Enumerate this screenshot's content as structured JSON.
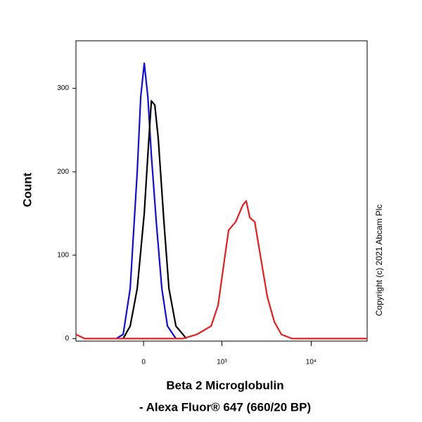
{
  "chart_data": {
    "type": "line",
    "y_label": "Count",
    "x_label": [
      "Beta 2 Microglobulin",
      "- Alexa Fluor® 647 (660/20 BP)"
    ],
    "annotation": "Copyright (c) 2021 Abcam Plc",
    "xscale": "biexponential",
    "xlim": [
      -750,
      41800
    ],
    "ylim": [
      -3,
      357
    ],
    "xticks": [
      0,
      {
        "value": 1000,
        "label": "10³"
      },
      {
        "value": 10000,
        "label": "10⁴"
      }
    ],
    "yticks": [
      0,
      100,
      200,
      300
    ],
    "series": [
      {
        "color": "#1010c8",
        "x": [
          -208,
          -150,
          -96,
          -45,
          -20,
          5,
          30,
          55,
          91,
          133,
          179,
          254
        ],
        "values": [
          0,
          5,
          60,
          200,
          290,
          330,
          290,
          220,
          140,
          60,
          15,
          0
        ]
      },
      {
        "color": "#000000",
        "x": [
          -150,
          -96,
          -45,
          5,
          30,
          55,
          80,
          106,
          150,
          191,
          254,
          366
        ],
        "values": [
          0,
          15,
          60,
          150,
          220,
          285,
          280,
          240,
          140,
          60,
          15,
          0
        ]
      },
      {
        "color": "#e02020",
        "x": [
          -750,
          -591,
          326,
          501,
          749,
          905,
          1089,
          1196,
          1438,
          1727,
          1889,
          2071,
          2351,
          2714,
          3253,
          3894,
          4664,
          6105,
          41800
        ],
        "values": [
          5,
          0,
          0,
          5,
          15,
          40,
          100,
          130,
          140,
          160,
          165,
          145,
          140,
          100,
          50,
          20,
          5,
          0,
          0
        ]
      }
    ]
  }
}
